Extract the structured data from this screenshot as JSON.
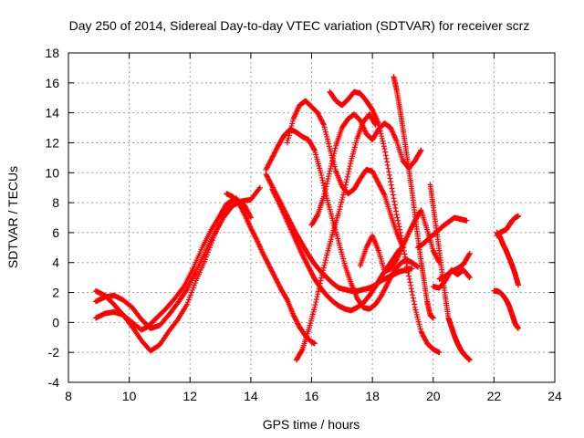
{
  "chart_data": {
    "type": "scatter",
    "title": "Day 250 of 2014, Sidereal Day-to-day VTEC variation (SDTVAR) for receiver scrz",
    "xlabel": "GPS time / hours",
    "ylabel": "SDTVAR / TECUs",
    "xlim": [
      8,
      24
    ],
    "ylim": [
      -4,
      18
    ],
    "xticks": [
      8,
      10,
      12,
      14,
      16,
      18,
      20,
      22,
      24
    ],
    "yticks": [
      -4,
      -2,
      0,
      2,
      4,
      6,
      8,
      10,
      12,
      14,
      16,
      18
    ],
    "grid": true,
    "marker": "+",
    "series_color": "#ff0000",
    "series": [
      {
        "x": [
          8.9,
          9.2,
          9.5,
          9.8,
          10.1,
          10.4,
          10.7,
          11.0,
          11.3,
          11.6,
          11.9,
          12.2,
          12.5,
          12.8,
          13.1,
          13.3
        ],
        "y": [
          2.1,
          1.8,
          1.2,
          0.5,
          -0.3,
          -1.2,
          -1.9,
          -1.5,
          -0.6,
          0.2,
          1.2,
          2.8,
          4.2,
          5.8,
          7.2,
          8.0
        ]
      },
      {
        "x": [
          8.9,
          9.2,
          9.5,
          9.8,
          10.1,
          10.4,
          10.6,
          10.9,
          11.2,
          11.5,
          11.8,
          12.1,
          12.4,
          12.7,
          13.0,
          13.2,
          13.5,
          13.8,
          14.0
        ],
        "y": [
          0.3,
          0.6,
          0.7,
          0.5,
          0.0,
          -0.5,
          -0.3,
          0.3,
          0.9,
          1.6,
          2.4,
          3.6,
          5.0,
          6.2,
          7.2,
          7.9,
          8.3,
          7.8,
          7.0
        ]
      },
      {
        "x": [
          8.9,
          9.2,
          9.5,
          9.8,
          10.1,
          10.4,
          10.7,
          11.0,
          11.3,
          11.6,
          11.9,
          12.2,
          12.5,
          12.8,
          13.1,
          13.4,
          13.7,
          14.0,
          14.3
        ],
        "y": [
          1.4,
          1.7,
          1.8,
          1.5,
          1.0,
          0.2,
          -0.4,
          -0.2,
          0.5,
          1.3,
          2.2,
          3.4,
          4.7,
          5.9,
          7.0,
          7.8,
          8.1,
          8.2,
          9.0
        ]
      },
      {
        "x": [
          13.2,
          13.4,
          13.6,
          13.8,
          14.0,
          14.2,
          14.4,
          14.6,
          14.8,
          15.0,
          15.2,
          15.4,
          15.6,
          15.8,
          16.0,
          16.1
        ],
        "y": [
          8.6,
          8.4,
          8.0,
          7.2,
          6.3,
          5.5,
          4.6,
          3.8,
          3.0,
          2.2,
          1.5,
          0.5,
          -0.3,
          -0.9,
          -1.3,
          -1.4
        ]
      },
      {
        "x": [
          14.5,
          14.7,
          14.9,
          15.1,
          15.3,
          15.5,
          15.7,
          15.9,
          16.1,
          16.3,
          16.5,
          16.7,
          16.9,
          17.1,
          17.3,
          17.5,
          17.7,
          17.9,
          18.1,
          18.3,
          18.5,
          18.7,
          18.9,
          19.1,
          19.3
        ],
        "y": [
          9.9,
          9.1,
          8.3,
          7.5,
          6.7,
          5.9,
          5.2,
          4.5,
          3.9,
          3.4,
          3.0,
          2.6,
          2.3,
          2.2,
          2.1,
          2.1,
          2.2,
          2.3,
          2.5,
          2.8,
          3.0,
          3.2,
          3.4,
          3.5,
          3.6
        ]
      },
      {
        "x": [
          14.7,
          14.9,
          15.1,
          15.3,
          15.5,
          15.7,
          15.9,
          16.1,
          16.3,
          16.5,
          16.7,
          16.9,
          17.1,
          17.3,
          17.5,
          17.7,
          17.9,
          18.1,
          18.3,
          18.5,
          18.7,
          18.9
        ],
        "y": [
          8.9,
          8.1,
          7.2,
          6.3,
          5.4,
          4.5,
          3.7,
          2.9,
          2.3,
          1.8,
          1.4,
          1.1,
          0.9,
          0.8,
          1.0,
          1.3,
          1.8,
          2.4,
          3.1,
          3.7,
          4.3,
          4.9
        ]
      },
      {
        "x": [
          14.5,
          14.7,
          14.9,
          15.1,
          15.3,
          15.5,
          15.7,
          15.9,
          16.1,
          16.3,
          16.5,
          16.7,
          16.9,
          17.1,
          17.3,
          17.5,
          17.7,
          17.9,
          18.1,
          18.3,
          18.5,
          18.7,
          18.9,
          19.1,
          19.3,
          19.5
        ],
        "y": [
          10.2,
          11.0,
          11.8,
          12.5,
          12.9,
          12.7,
          12.4,
          12.2,
          11.5,
          10.0,
          8.3,
          6.8,
          5.3,
          3.8,
          2.6,
          1.6,
          1.0,
          0.9,
          1.2,
          1.8,
          2.6,
          3.4,
          3.9,
          4.2,
          4.0,
          3.7
        ]
      },
      {
        "x": [
          15.2,
          15.4,
          15.6,
          15.8,
          16.0,
          16.2,
          16.4,
          16.6,
          16.8,
          17.0,
          17.2,
          17.4,
          17.6,
          17.8,
          18.0,
          18.2,
          18.4,
          18.6,
          18.8,
          19.0
        ],
        "y": [
          12.0,
          13.6,
          14.5,
          14.8,
          14.4,
          14.0,
          13.2,
          11.6,
          10.1,
          9.1,
          8.6,
          8.9,
          9.6,
          10.2,
          10.1,
          9.3,
          8.5,
          7.2,
          6.0,
          5.0
        ]
      },
      {
        "x": [
          15.5,
          15.7,
          15.9,
          16.1,
          16.3,
          16.5,
          16.7,
          16.9,
          17.1,
          17.3,
          17.5,
          17.7,
          17.9,
          18.1
        ],
        "y": [
          -2.5,
          -1.8,
          -0.5,
          1.0,
          2.8,
          4.5,
          6.0,
          7.4,
          9.0,
          10.8,
          12.3,
          13.4,
          13.9,
          13.2
        ]
      },
      {
        "x": [
          16.6,
          16.8,
          17.0,
          17.2,
          17.4,
          17.6,
          17.8,
          18.0,
          18.2,
          18.4,
          18.6,
          18.8,
          19.0,
          19.2,
          19.4,
          19.6,
          19.8,
          20.0,
          20.2
        ],
        "y": [
          15.4,
          14.8,
          14.5,
          14.9,
          15.4,
          15.3,
          14.8,
          14.2,
          13.3,
          11.6,
          9.4,
          7.2,
          5.2,
          3.1,
          1.0,
          -0.6,
          -1.4,
          -1.8,
          -2.0
        ]
      },
      {
        "x": [
          16.0,
          16.2,
          16.4,
          16.6,
          16.8,
          17.0,
          17.2,
          17.4,
          17.6,
          17.8,
          18.0,
          18.2,
          18.4,
          18.6,
          18.8,
          19.0,
          19.2,
          19.4,
          19.6
        ],
        "y": [
          6.5,
          7.2,
          8.4,
          10.1,
          11.8,
          13.0,
          13.6,
          13.9,
          13.5,
          12.6,
          12.2,
          12.9,
          13.3,
          13.0,
          12.1,
          10.8,
          10.3,
          10.8,
          11.5
        ]
      },
      {
        "x": [
          17.6,
          17.8,
          18.0,
          18.2,
          18.4,
          18.6,
          18.8,
          19.0,
          19.2,
          19.4,
          19.6,
          19.8,
          20.0,
          20.2
        ],
        "y": [
          3.8,
          5.0,
          5.8,
          4.8,
          3.4,
          3.6,
          4.2,
          5.1,
          6.0,
          6.8,
          7.5,
          6.2,
          4.8,
          4.0
        ]
      },
      {
        "x": [
          18.7,
          18.8,
          18.9,
          19.0,
          19.1,
          19.2,
          19.3,
          19.4,
          19.5,
          19.6,
          19.7,
          19.8,
          19.9,
          20.0
        ],
        "y": [
          16.4,
          15.5,
          14.3,
          13.0,
          11.6,
          10.2,
          8.8,
          7.2,
          5.6,
          4.1,
          2.8,
          1.4,
          0.5,
          0.3
        ]
      },
      {
        "x": [
          19.5,
          19.7,
          19.9,
          20.1,
          20.3,
          20.5,
          20.7,
          20.9,
          21.1
        ],
        "y": [
          5.0,
          5.3,
          5.7,
          6.0,
          6.4,
          6.7,
          7.0,
          6.9,
          6.8
        ]
      },
      {
        "x": [
          19.9,
          20.0,
          20.1,
          20.2,
          20.3,
          20.4,
          20.5,
          20.6,
          20.7,
          20.8,
          20.9,
          21.0,
          21.1,
          21.2
        ],
        "y": [
          9.2,
          7.8,
          6.3,
          4.8,
          3.2,
          1.7,
          0.3,
          -0.3,
          -0.9,
          -1.4,
          -1.8,
          -2.1,
          -2.3,
          -2.5
        ]
      },
      {
        "x": [
          20.2,
          20.4,
          20.6,
          20.8,
          21.0,
          21.2
        ],
        "y": [
          2.9,
          3.1,
          3.4,
          3.6,
          3.9,
          4.6
        ]
      },
      {
        "x": [
          20.0,
          20.2,
          20.4,
          20.6,
          20.8,
          21.0,
          21.2
        ],
        "y": [
          2.4,
          2.3,
          2.8,
          3.5,
          3.2,
          3.5,
          3.0
        ]
      },
      {
        "x": [
          22.1,
          22.2,
          22.3,
          22.4,
          22.5,
          22.6,
          22.7,
          22.8
        ],
        "y": [
          5.8,
          6.0,
          6.1,
          6.2,
          6.5,
          6.8,
          7.0,
          7.1
        ]
      },
      {
        "x": [
          22.1,
          22.2,
          22.3,
          22.4,
          22.5,
          22.6,
          22.7,
          22.8
        ],
        "y": [
          6.0,
          5.7,
          5.2,
          4.8,
          4.3,
          3.8,
          3.2,
          2.5
        ]
      },
      {
        "x": [
          22.0,
          22.1,
          22.2,
          22.3,
          22.4,
          22.5,
          22.6,
          22.7,
          22.8
        ],
        "y": [
          2.1,
          2.1,
          2.0,
          1.8,
          1.5,
          1.1,
          0.5,
          -0.1,
          -0.4
        ]
      }
    ]
  }
}
